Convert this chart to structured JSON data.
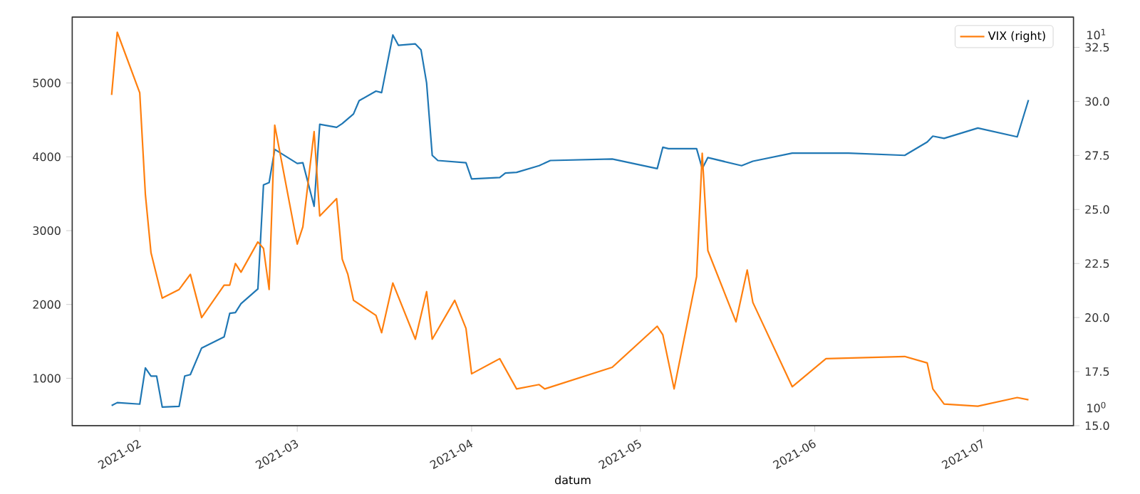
{
  "chart_data": {
    "type": "line",
    "xlabel": "datum",
    "legend": "top right",
    "grid": false,
    "xlim": [
      "2021-01-20",
      "2021-07-17"
    ],
    "xticks": [
      {
        "value": "2021-02-01",
        "label": "2021-02"
      },
      {
        "value": "2021-03-01",
        "label": "2021-03"
      },
      {
        "value": "2021-04-01",
        "label": "2021-04"
      },
      {
        "value": "2021-05-01",
        "label": "2021-05"
      },
      {
        "value": "2021-06-01",
        "label": "2021-06"
      },
      {
        "value": "2021-07-01",
        "label": "2021-07"
      }
    ],
    "ylim": [
      358,
      5893
    ],
    "yticks": [
      1000,
      2000,
      3000,
      4000,
      5000
    ],
    "y2lim": [
      15,
      33.9
    ],
    "y2ticks": [
      {
        "value": 15,
        "label": "15.0"
      },
      {
        "value": 17.5,
        "label": "17.5"
      },
      {
        "value": 20,
        "label": "20.0"
      },
      {
        "value": 22.5,
        "label": "22.5"
      },
      {
        "value": 25,
        "label": "25.0"
      },
      {
        "value": 27.5,
        "label": "27.5"
      },
      {
        "value": 30,
        "label": "30.0"
      },
      {
        "value": 32.5,
        "label": "32.5"
      }
    ],
    "annotations": [
      "10$^{1}$",
      "10$^{0}$"
    ],
    "series": [
      {
        "color": "#1f77b4",
        "x": [
          "2021-01-27",
          "2021-01-28",
          "2021-02-01",
          "2021-02-02",
          "2021-02-03",
          "2021-02-04",
          "2021-02-05",
          "2021-02-08",
          "2021-02-09",
          "2021-02-10",
          "2021-02-12",
          "2021-02-16",
          "2021-02-17",
          "2021-02-18",
          "2021-02-19",
          "2021-02-22",
          "2021-02-23",
          "2021-02-24",
          "2021-02-25",
          "2021-03-01",
          "2021-03-02",
          "2021-03-04",
          "2021-03-05",
          "2021-03-08",
          "2021-03-09",
          "2021-03-11",
          "2021-03-12",
          "2021-03-15",
          "2021-03-16",
          "2021-03-18",
          "2021-03-19",
          "2021-03-22",
          "2021-03-23",
          "2021-03-24",
          "2021-03-25",
          "2021-03-26",
          "2021-03-31",
          "2021-04-01",
          "2021-04-06",
          "2021-04-07",
          "2021-04-09",
          "2021-04-13",
          "2021-04-15",
          "2021-04-26",
          "2021-05-04",
          "2021-05-05",
          "2021-05-06",
          "2021-05-11",
          "2021-05-12",
          "2021-05-13",
          "2021-05-19",
          "2021-05-21",
          "2021-05-28",
          "2021-06-07",
          "2021-06-17",
          "2021-06-21",
          "2021-06-22",
          "2021-06-24",
          "2021-06-30",
          "2021-07-07",
          "2021-07-09"
        ],
        "values": [
          630,
          670,
          650,
          1140,
          1030,
          1030,
          610,
          620,
          1030,
          1050,
          1410,
          1560,
          1880,
          1890,
          2010,
          2210,
          3620,
          3650,
          4100,
          3910,
          3920,
          3330,
          4440,
          4400,
          4450,
          4580,
          4760,
          4890,
          4870,
          5650,
          5510,
          5530,
          5450,
          5000,
          4020,
          3950,
          3920,
          3700,
          3720,
          3780,
          3790,
          3880,
          3950,
          3970,
          3840,
          4130,
          4110,
          4110,
          3840,
          3990,
          3880,
          3940,
          4050,
          4050,
          4020,
          4200,
          4280,
          4250,
          4390,
          4270,
          4770
        ]
      },
      {
        "name": "VIX (right)",
        "color": "#ff7f0e",
        "axis": "y2",
        "x": [
          "2021-01-27",
          "2021-01-28",
          "2021-02-01",
          "2021-02-02",
          "2021-02-03",
          "2021-02-05",
          "2021-02-08",
          "2021-02-10",
          "2021-02-12",
          "2021-02-16",
          "2021-02-17",
          "2021-02-18",
          "2021-02-19",
          "2021-02-22",
          "2021-02-23",
          "2021-02-24",
          "2021-02-25",
          "2021-03-01",
          "2021-03-02",
          "2021-03-04",
          "2021-03-05",
          "2021-03-08",
          "2021-03-09",
          "2021-03-10",
          "2021-03-11",
          "2021-03-15",
          "2021-03-16",
          "2021-03-18",
          "2021-03-22",
          "2021-03-24",
          "2021-03-25",
          "2021-03-29",
          "2021-03-31",
          "2021-04-01",
          "2021-04-06",
          "2021-04-09",
          "2021-04-13",
          "2021-04-14",
          "2021-04-26",
          "2021-05-04",
          "2021-05-05",
          "2021-05-07",
          "2021-05-11",
          "2021-05-12",
          "2021-05-13",
          "2021-05-18",
          "2021-05-20",
          "2021-05-21",
          "2021-05-28",
          "2021-06-03",
          "2021-06-17",
          "2021-06-21",
          "2021-06-22",
          "2021-06-24",
          "2021-06-30",
          "2021-07-07",
          "2021-07-09"
        ],
        "values": [
          30.3,
          33.2,
          30.4,
          25.7,
          23.0,
          20.9,
          21.3,
          22.0,
          20.0,
          21.5,
          21.5,
          22.5,
          22.1,
          23.5,
          23.2,
          21.3,
          28.9,
          23.4,
          24.2,
          28.6,
          24.7,
          25.5,
          22.7,
          22.0,
          20.8,
          20.1,
          19.3,
          21.6,
          19.0,
          21.2,
          19.0,
          20.8,
          19.5,
          17.4,
          18.1,
          16.7,
          16.9,
          16.7,
          17.7,
          19.6,
          19.2,
          16.7,
          21.9,
          27.6,
          23.1,
          19.8,
          22.2,
          20.7,
          16.8,
          18.1,
          18.2,
          17.9,
          16.7,
          16.0,
          15.9,
          16.3,
          16.2
        ]
      }
    ]
  }
}
